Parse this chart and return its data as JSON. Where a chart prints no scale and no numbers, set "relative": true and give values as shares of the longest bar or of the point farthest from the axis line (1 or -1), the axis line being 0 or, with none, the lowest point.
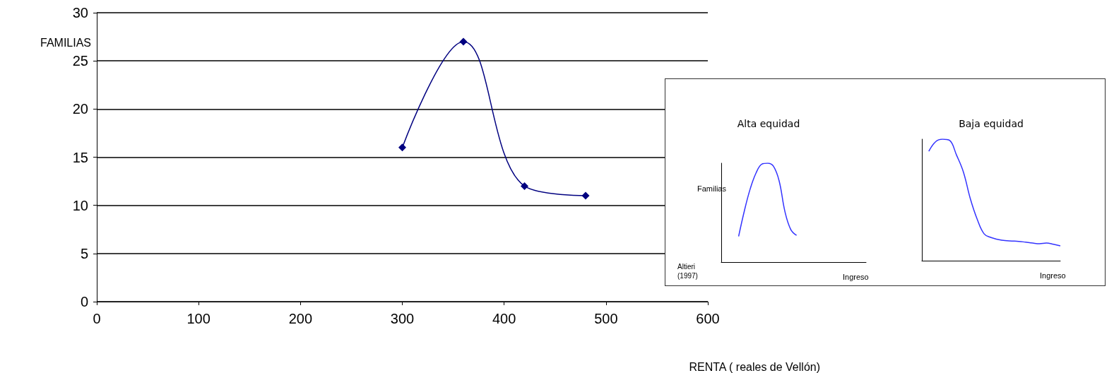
{
  "chart_data": [
    {
      "type": "line",
      "xlabel": "RENTA ( reales de Vellón)",
      "ylabel": "FAMILIAS",
      "x": [
        300,
        360,
        420,
        480
      ],
      "series": [
        {
          "color": "#000080",
          "values": [
            16,
            27,
            12,
            11
          ]
        }
      ],
      "xlim": [
        0,
        600
      ],
      "xticks": [
        0,
        100,
        200,
        300,
        400,
        500,
        600
      ],
      "ylim": [
        0,
        30
      ],
      "yticks": [
        0,
        5,
        10,
        15,
        20,
        25,
        30
      ],
      "grid": "y",
      "marker": "diamond"
    },
    {
      "type": "line",
      "title": "Alta equidad",
      "xlabel": "Ingreso",
      "ylabel": "Familias",
      "relative": true,
      "annotations": [
        "Altieri (1997)"
      ],
      "categories": [
        null,
        null,
        null,
        null,
        null,
        null,
        null,
        null,
        null,
        null,
        null,
        null,
        null,
        null,
        null,
        null,
        null,
        null,
        null,
        null,
        null,
        null,
        null,
        null,
        null,
        null
      ],
      "series": [
        {
          "color": "#3333ff",
          "values": [
            null,
            null,
            null,
            0.26,
            0.52,
            0.74,
            0.9,
            0.99,
            1,
            0.97,
            0.82,
            0.51,
            0.33,
            0.27,
            null,
            null,
            null,
            null,
            null,
            null,
            null,
            null,
            null,
            null,
            null,
            null
          ]
        }
      ],
      "marker": "none"
    },
    {
      "type": "line",
      "title": "Baja equidad",
      "xlabel": "Ingreso",
      "relative": true,
      "categories": [
        null,
        null,
        null,
        null,
        null,
        null,
        null,
        null,
        null,
        null,
        null,
        null,
        null,
        null,
        null,
        null,
        null,
        null,
        null,
        null,
        null
      ],
      "series": [
        {
          "color": "#3333ff",
          "values": [
            null,
            0.9,
            0.98,
            1,
            0.99,
            0.87,
            0.73,
            0.51,
            0.34,
            0.22,
            0.19,
            0.175,
            0.165,
            0.162,
            0.159,
            0.152,
            0.145,
            0.14,
            0.145,
            0.135,
            0.122
          ]
        }
      ],
      "marker": "none"
    }
  ]
}
